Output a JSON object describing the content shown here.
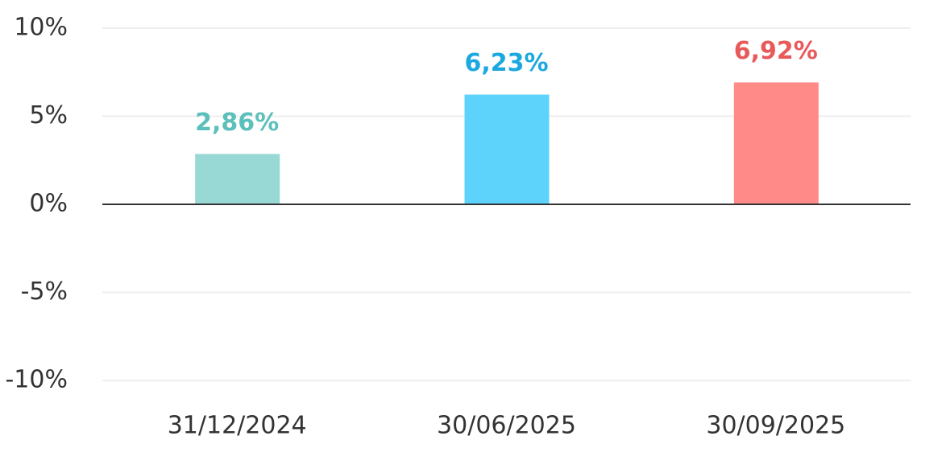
{
  "chart_data": {
    "type": "bar",
    "categories": [
      "31/12/2024",
      "30/06/2025",
      "30/09/2025"
    ],
    "values": [
      2.86,
      6.23,
      6.92
    ],
    "value_labels": [
      "2,86%",
      "6,23%",
      "6,92%"
    ],
    "colors": [
      "#98d9d6",
      "#5dd3fc",
      "#ff8a87"
    ],
    "label_colors": [
      "#5bbfbb",
      "#1ba8e0",
      "#e85a5a"
    ],
    "ylim": [
      -10,
      10
    ],
    "yticks": [
      {
        "value": -10,
        "label": "-10%"
      },
      {
        "value": -5,
        "label": "-5%"
      },
      {
        "value": 0,
        "label": "0%"
      },
      {
        "value": 5,
        "label": "5%"
      },
      {
        "value": 10,
        "label": "10%"
      }
    ],
    "grid": true
  }
}
